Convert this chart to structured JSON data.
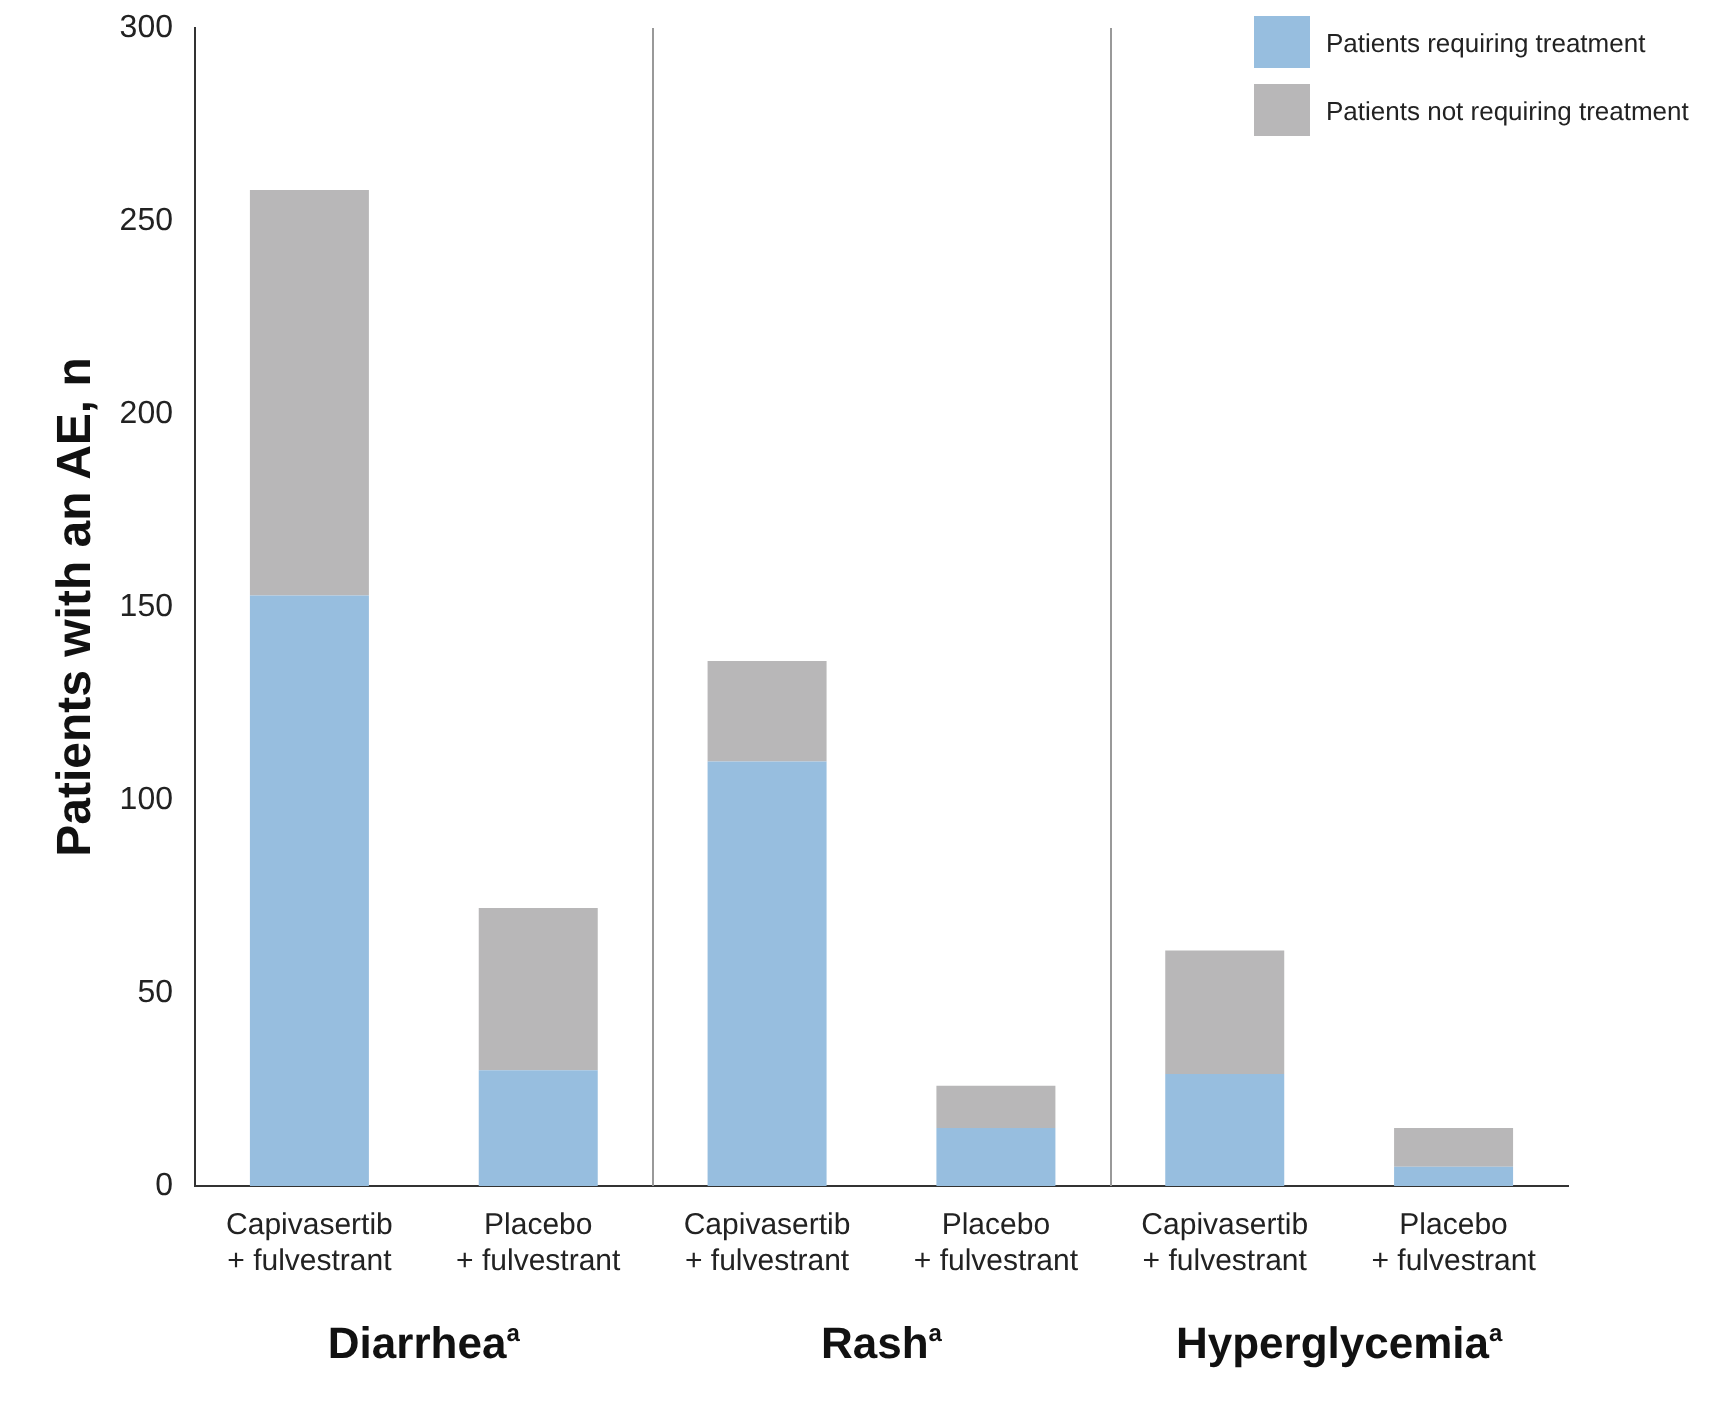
{
  "chart_data": {
    "type": "bar",
    "stacked": true,
    "ylabel": "Patients with an AE, n",
    "categories": [
      "Capivasertib\n+ fulvestrant",
      "Placebo\n+ fulvestrant",
      "Capivasertib\n+ fulvestrant",
      "Placebo\n+ fulvestrant",
      "Capivasertib\n+ fulvestrant",
      "Placebo\n+ fulvestrant"
    ],
    "series": [
      {
        "name": "Patients requiring treatment",
        "color": "#97bedf",
        "values": [
          153,
          30,
          110,
          15,
          29,
          5
        ]
      },
      {
        "name": "Patients not requiring treatment",
        "color": "#b8b7b8",
        "values": [
          105,
          42,
          26,
          11,
          32,
          10
        ]
      }
    ],
    "ylim": [
      0,
      300
    ],
    "yticks": [
      0,
      50,
      100,
      150,
      200,
      250,
      300
    ],
    "grid": false,
    "legend": "top right",
    "annotations": [
      "Diarrhea$^{a}$",
      "Rash$^{a}$",
      "Hyperglycemia$^{a}$"
    ]
  }
}
